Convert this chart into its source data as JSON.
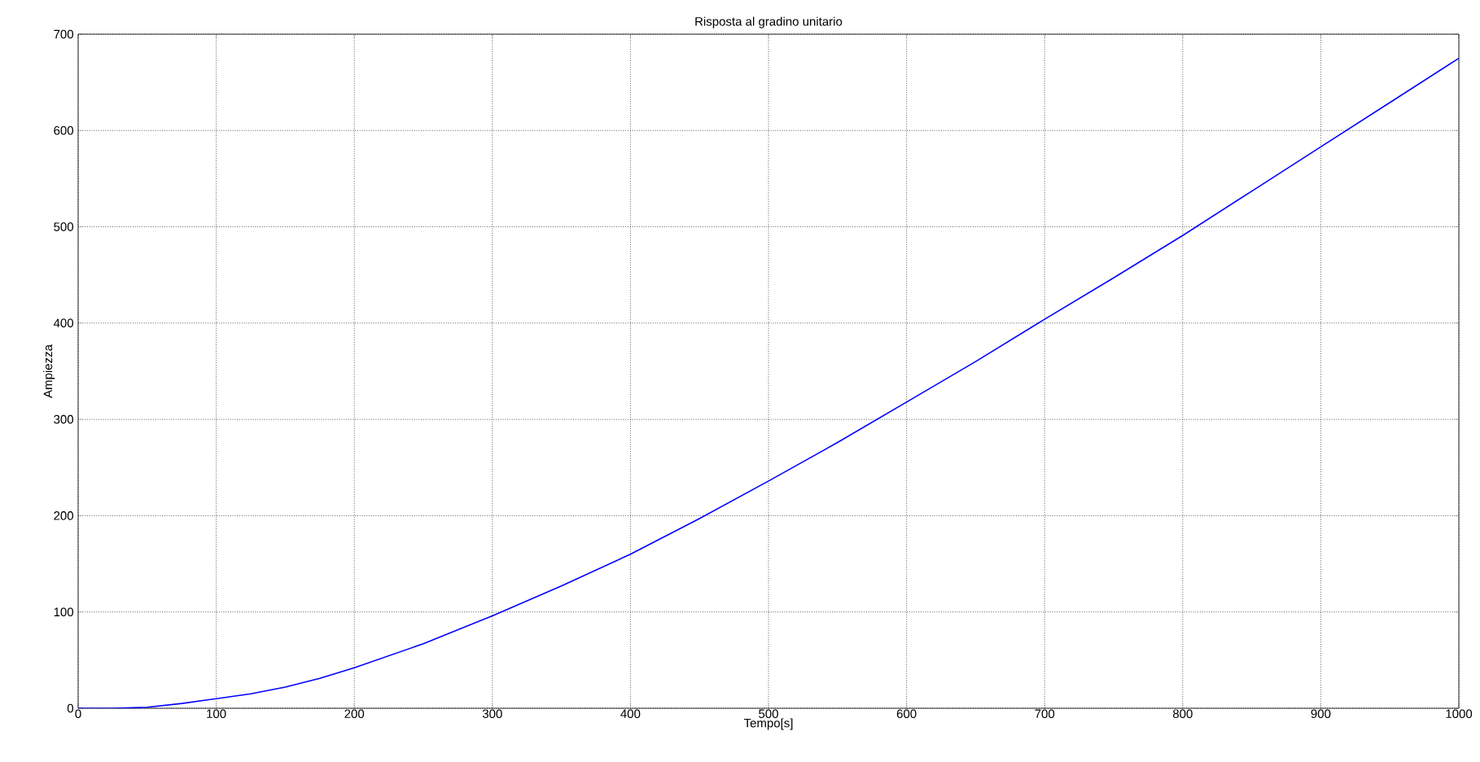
{
  "chart_data": {
    "type": "line",
    "title": "Risposta al gradino unitario",
    "xlabel": "Tempo[s]",
    "ylabel": "Ampiezza",
    "x": [
      0,
      25,
      50,
      75,
      100,
      125,
      150,
      175,
      200,
      250,
      300,
      350,
      400,
      450,
      500,
      550,
      600,
      650,
      700,
      750,
      800,
      850,
      900,
      950,
      1000
    ],
    "series": [
      {
        "color": "#0000ff",
        "values": [
          0,
          0,
          1,
          5,
          10,
          15,
          22,
          31,
          42,
          67,
          96,
          127,
          160,
          197,
          236,
          276,
          318,
          360,
          404,
          447,
          491,
          537,
          583,
          629,
          675
        ]
      }
    ],
    "xlim": [
      0,
      1000
    ],
    "ylim": [
      0,
      700
    ],
    "xticks": [
      0,
      100,
      200,
      300,
      400,
      500,
      600,
      700,
      800,
      900,
      1000
    ],
    "yticks": [
      0,
      100,
      200,
      300,
      400,
      500,
      600,
      700
    ],
    "grid": true,
    "marker": "none",
    "line_style": "solid"
  }
}
